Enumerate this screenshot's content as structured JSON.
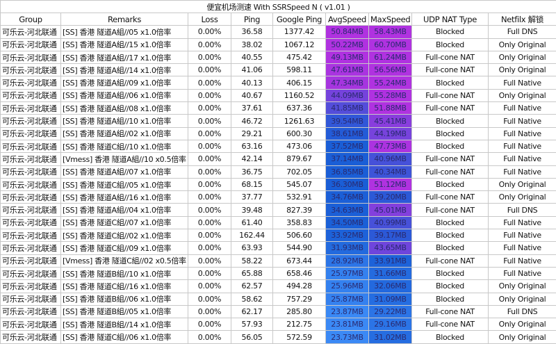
{
  "title": "便宜机场测速 With SSRSpeed N ( v1.01 )",
  "headers": [
    "Group",
    "Remarks",
    "Loss",
    "Ping",
    "Google Ping",
    "AvgSpeed",
    "MaxSpeed",
    "UDP NAT Type",
    "Netfilx 解锁"
  ],
  "speed_colors": {
    "low": "#3d8cf7",
    "mid": "#1a5ed6",
    "high": "#b032e0"
  },
  "rows": [
    [
      "可乐云-河北联通",
      "[SS] 香港  隧道A組//05 x1.0倍率",
      "0.00%",
      "36.58",
      "1377.42",
      "50.84MB",
      "58.43MB",
      "Blocked",
      "Full DNS"
    ],
    [
      "可乐云-河北联通",
      "[SS] 香港  隧道A組//15 x1.0倍率",
      "0.00%",
      "38.02",
      "1067.12",
      "50.22MB",
      "60.70MB",
      "Blocked",
      "Only Original"
    ],
    [
      "可乐云-河北联通",
      "[SS] 香港  隧道A組//17 x1.0倍率",
      "0.00%",
      "40.55",
      "475.42",
      "49.13MB",
      "61.24MB",
      "Full-cone NAT",
      "Only Original"
    ],
    [
      "可乐云-河北联通",
      "[SS] 香港  隧道A組//14 x1.0倍率",
      "0.00%",
      "41.06",
      "598.11",
      "47.61MB",
      "56.56MB",
      "Full-cone NAT",
      "Only Original"
    ],
    [
      "可乐云-河北联通",
      "[SS] 香港  隧道A組//09 x1.0倍率",
      "0.00%",
      "40.13",
      "406.15",
      "47.34MB",
      "55.24MB",
      "Blocked",
      "Full Native"
    ],
    [
      "可乐云-河北联通",
      "[SS] 香港  隧道A組//06 x1.0倍率",
      "0.00%",
      "40.67",
      "1160.52",
      "44.09MB",
      "55.28MB",
      "Full-cone NAT",
      "Only Original"
    ],
    [
      "可乐云-河北联通",
      "[SS] 香港  隧道A組//08 x1.0倍率",
      "0.00%",
      "37.61",
      "637.36",
      "41.85MB",
      "51.88MB",
      "Full-cone NAT",
      "Full Native"
    ],
    [
      "可乐云-河北联通",
      "[SS] 香港  隧道A組//10 x1.0倍率",
      "0.00%",
      "46.72",
      "1261.63",
      "39.54MB",
      "45.41MB",
      "Blocked",
      "Full Native"
    ],
    [
      "可乐云-河北联通",
      "[SS] 香港  隧道A組//02 x1.0倍率",
      "0.00%",
      "29.21",
      "600.30",
      "38.61MB",
      "44.19MB",
      "Blocked",
      "Full Native"
    ],
    [
      "可乐云-河北联通",
      "[SS] 香港  隧道C組//10 x1.0倍率",
      "0.00%",
      "63.16",
      "473.06",
      "37.52MB",
      "47.73MB",
      "Blocked",
      "Full Native"
    ],
    [
      "可乐云-河北联通",
      "[Vmess] 香港  隧道A組//10 x0.5倍率",
      "0.00%",
      "42.14",
      "879.67",
      "37.14MB",
      "40.96MB",
      "Full-cone NAT",
      "Full Native"
    ],
    [
      "可乐云-河北联通",
      "[SS] 香港  隧道A組//07 x1.0倍率",
      "0.00%",
      "36.75",
      "702.05",
      "36.85MB",
      "40.34MB",
      "Full-cone NAT",
      "Full Native"
    ],
    [
      "可乐云-河北联通",
      "[SS] 香港  隧道C組//05 x1.0倍率",
      "0.00%",
      "68.15",
      "545.07",
      "36.30MB",
      "51.12MB",
      "Blocked",
      "Only Original"
    ],
    [
      "可乐云-河北联通",
      "[SS] 香港  隧道A組//16 x1.0倍率",
      "0.00%",
      "37.77",
      "532.91",
      "34.76MB",
      "39.20MB",
      "Full-cone NAT",
      "Only Original"
    ],
    [
      "可乐云-河北联通",
      "[SS] 香港  隧道A組//04 x1.0倍率",
      "0.00%",
      "39.48",
      "827.39",
      "34.63MB",
      "45.01MB",
      "Full-cone NAT",
      "Full DNS"
    ],
    [
      "可乐云-河北联通",
      "[SS] 香港  隧道C組//07 x1.0倍率",
      "0.00%",
      "61.40",
      "358.83",
      "34.50MB",
      "40.99MB",
      "Blocked",
      "Full Native"
    ],
    [
      "可乐云-河北联通",
      "[SS] 香港  隧道C組//02 x1.0倍率",
      "0.00%",
      "162.44",
      "506.60",
      "33.92MB",
      "39.17MB",
      "Blocked",
      "Full Native"
    ],
    [
      "可乐云-河北联通",
      "[SS] 香港  隧道C組//09 x1.0倍率",
      "0.00%",
      "63.93",
      "544.90",
      "31.93MB",
      "43.65MB",
      "Blocked",
      "Full Native"
    ],
    [
      "可乐云-河北联通",
      "[Vmess] 香港  隧道C組//02 x0.5倍率",
      "0.00%",
      "58.22",
      "673.44",
      "28.92MB",
      "33.91MB",
      "Full-cone NAT",
      "Full Native"
    ],
    [
      "可乐云-河北联通",
      "[SS] 香港  隧道B組//10 x1.0倍率",
      "0.00%",
      "65.88",
      "658.46",
      "25.97MB",
      "31.66MB",
      "Blocked",
      "Full Native"
    ],
    [
      "可乐云-河北联通",
      "[SS] 香港  隧道C組//16 x1.0倍率",
      "0.00%",
      "62.57",
      "494.28",
      "25.96MB",
      "32.06MB",
      "Blocked",
      "Only Original"
    ],
    [
      "可乐云-河北联通",
      "[SS] 香港  隧道B組//06 x1.0倍率",
      "0.00%",
      "58.62",
      "757.29",
      "25.87MB",
      "31.09MB",
      "Blocked",
      "Only Original"
    ],
    [
      "可乐云-河北联通",
      "[SS] 香港  隧道B組//05 x1.0倍率",
      "0.00%",
      "62.17",
      "285.80",
      "23.87MB",
      "29.22MB",
      "Full-cone NAT",
      "Full DNS"
    ],
    [
      "可乐云-河北联通",
      "[SS] 香港  隧道B組//14 x1.0倍率",
      "0.00%",
      "57.93",
      "212.75",
      "23.81MB",
      "29.16MB",
      "Full-cone NAT",
      "Only Original"
    ],
    [
      "可乐云-河北联通",
      "[SS] 香港  隧道C組//06 x1.0倍率",
      "0.00%",
      "56.05",
      "572.59",
      "23.73MB",
      "31.02MB",
      "Blocked",
      "Only Original"
    ]
  ]
}
